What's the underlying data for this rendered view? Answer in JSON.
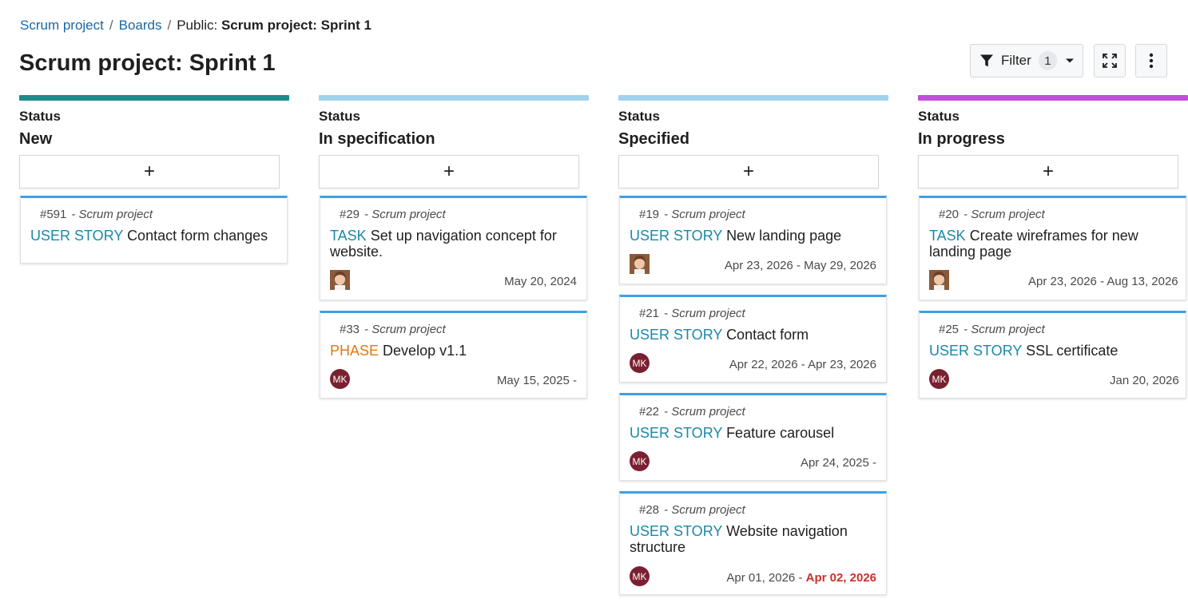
{
  "breadcrumb": {
    "project": "Scrum project",
    "boards": "Boards",
    "current_prefix": "Public: ",
    "current": "Scrum project: Sprint 1"
  },
  "page_title": "Scrum project: Sprint 1",
  "toolbar": {
    "filter_label": "Filter",
    "filter_count": "1",
    "filter_icon": "funnel-icon",
    "fullscreen_icon": "expand-icon",
    "more_icon": "more-vertical-icon"
  },
  "columns": [
    {
      "caption": "Status",
      "name": "New",
      "bar_color": "#1f8a8a",
      "add_label": "+",
      "cards": [
        {
          "id": "#591",
          "project": "- Scrum project",
          "type": "USER STORY",
          "title": "Contact form changes",
          "avatar": "",
          "date": "",
          "overdue": ""
        }
      ]
    },
    {
      "caption": "Status",
      "name": "In specification",
      "bar_color": "#9fd3f0",
      "add_label": "+",
      "cards": [
        {
          "id": "#29",
          "project": "- Scrum project",
          "type": "TASK",
          "title": "Set up navigation concept for website.",
          "avatar": "photo",
          "date": "May 20, 2024",
          "overdue": ""
        },
        {
          "id": "#33",
          "project": "- Scrum project",
          "type": "PHASE",
          "title": "Develop v1.1",
          "avatar": "MK",
          "date": "May 15, 2025 -",
          "overdue": ""
        }
      ]
    },
    {
      "caption": "Status",
      "name": "Specified",
      "bar_color": "#9fd3f0",
      "add_label": "+",
      "cards": [
        {
          "id": "#19",
          "project": "- Scrum project",
          "type": "USER STORY",
          "title": "New landing page",
          "avatar": "photo",
          "date": "Apr 23, 2026 - May 29, 2026",
          "overdue": ""
        },
        {
          "id": "#21",
          "project": "- Scrum project",
          "type": "USER STORY",
          "title": "Contact form",
          "avatar": "MK",
          "date": "Apr 22, 2026 - Apr 23, 2026",
          "overdue": ""
        },
        {
          "id": "#22",
          "project": "- Scrum project",
          "type": "USER STORY",
          "title": "Feature carousel",
          "avatar": "MK",
          "date": "Apr 24, 2025 -",
          "overdue": ""
        },
        {
          "id": "#28",
          "project": "- Scrum project",
          "type": "USER STORY",
          "title": "Website navigation structure",
          "avatar": "MK",
          "date": "Apr 01, 2026 - ",
          "overdue": "Apr 02, 2026"
        }
      ]
    },
    {
      "caption": "Status",
      "name": "In progress",
      "bar_color": "#c04fd8",
      "add_label": "+",
      "cards": [
        {
          "id": "#20",
          "project": "- Scrum project",
          "type": "TASK",
          "title": "Create wireframes for new landing page",
          "avatar": "photo",
          "date": "Apr 23, 2026 - Aug 13, 2026",
          "overdue": ""
        },
        {
          "id": "#25",
          "project": "- Scrum project",
          "type": "USER STORY",
          "title": "SSL certificate",
          "avatar": "MK",
          "date": "Jan 20, 2026",
          "overdue": ""
        }
      ]
    }
  ]
}
